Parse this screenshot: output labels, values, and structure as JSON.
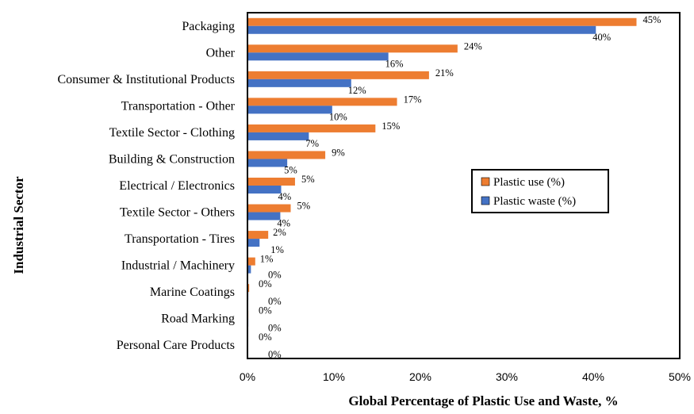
{
  "chart_data": {
    "type": "bar",
    "orientation": "horizontal",
    "categories": [
      "Packaging",
      "Other",
      "Consumer & Institutional Products",
      "Transportation - Other",
      "Textile Sector - Clothing",
      "Building & Construction",
      "Electrical / Electronics",
      "Textile Sector - Others",
      "Transportation - Tires",
      "Industrial / Machinery",
      "Marine Coatings",
      "Road Marking",
      "Personal Care Products"
    ],
    "series": [
      {
        "name": "Plastic use (%)",
        "color": "#ED7D31",
        "values": [
          45,
          24.3,
          21,
          17.3,
          14.8,
          9,
          5.5,
          5,
          2.4,
          0.9,
          0.2,
          0.1,
          0.05
        ],
        "labels": [
          "45%",
          "24%",
          "21%",
          "17%",
          "15%",
          "9%",
          "5%",
          "5%",
          "2%",
          "1%",
          "0%",
          "0%",
          "0%"
        ]
      },
      {
        "name": "Plastic waste (%)",
        "color": "#4472C4",
        "values": [
          40.3,
          16.3,
          12,
          9.8,
          7.1,
          4.6,
          3.9,
          3.8,
          1.4,
          0.4,
          0.1,
          0.1,
          0.05
        ],
        "labels": [
          "40%",
          "16%",
          "12%",
          "10%",
          "7%",
          "5%",
          "4%",
          "4%",
          "1%",
          "0%",
          "0%",
          "0%",
          "0%"
        ]
      }
    ],
    "xlim": [
      0,
      50
    ],
    "xticks": [
      0,
      10,
      20,
      30,
      40,
      50
    ],
    "xtick_labels": [
      "0%",
      "10%",
      "20%",
      "30%",
      "40%",
      "50%"
    ],
    "xlabel": "Global Percentage of Plastic Use and Waste, %",
    "ylabel": "Industrial Sector",
    "title": "",
    "grid": false,
    "legend_position": "center-right"
  }
}
